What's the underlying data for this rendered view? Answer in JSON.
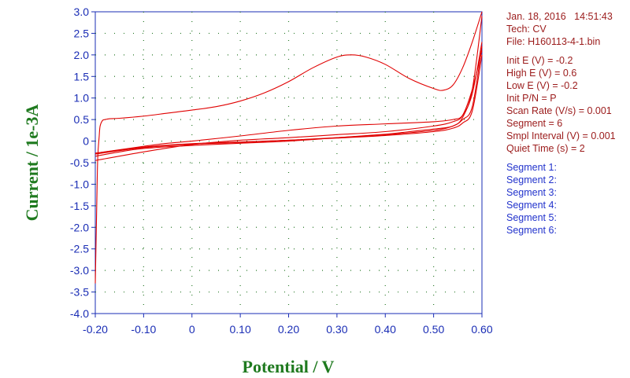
{
  "info_header": {
    "date_line": "Jan. 18, 2016   14:51:43",
    "tech": "Tech: CV",
    "file": "File: H160113-4-1.bin"
  },
  "params": [
    "Init E (V) = -0.2",
    "High E (V) = 0.6",
    "Low E (V) = -0.2",
    "Init P/N = P",
    "Scan Rate (V/s) = 0.001",
    "Segment = 6",
    "Smpl Interval (V) = 0.001",
    "Quiet Time (s) = 2"
  ],
  "segments": [
    "Segment 1:",
    "Segment 2:",
    "Segment 3:",
    "Segment 4:",
    "Segment 5:",
    "Segment 6:"
  ],
  "colors": {
    "curve": "#e00000",
    "axis": "#1a2db5",
    "axis_title": "#1f7a1f",
    "grid": "#2a7a2a",
    "info_text": "#9b1b1b",
    "segment_text": "#2233cc"
  },
  "chart_data": {
    "type": "line",
    "xlabel": "Potential / V",
    "ylabel": "Current / 1e-3A",
    "xlim": [
      -0.2,
      0.6
    ],
    "ylim": [
      -4.0,
      3.0
    ],
    "x_ticks": [
      "-0.20",
      "-0.10",
      "0",
      "0.10",
      "0.20",
      "0.30",
      "0.40",
      "0.50",
      "0.60"
    ],
    "y_ticks": [
      "3.0",
      "2.5",
      "2.0",
      "1.5",
      "1.0",
      "0.5",
      "0",
      "-0.5",
      "-1.0",
      "-1.5",
      "-2.0",
      "-2.5",
      "-3.0",
      "-3.5",
      "-4.0"
    ],
    "grid": true,
    "series": [
      {
        "x": [
          -0.2,
          -0.197,
          -0.195,
          -0.192,
          -0.19,
          -0.185,
          -0.18,
          -0.17,
          -0.15,
          -0.1,
          -0.05,
          0.0,
          0.05,
          0.1,
          0.15,
          0.2,
          0.25,
          0.3,
          0.33,
          0.36,
          0.4,
          0.45,
          0.5,
          0.52,
          0.54,
          0.56,
          0.58,
          0.6
        ],
        "y": [
          -3.3,
          -1.5,
          -0.4,
          0.1,
          0.35,
          0.48,
          0.5,
          0.52,
          0.53,
          0.58,
          0.65,
          0.72,
          0.8,
          0.93,
          1.12,
          1.38,
          1.7,
          1.95,
          2.0,
          1.95,
          1.78,
          1.45,
          1.22,
          1.18,
          1.3,
          1.7,
          2.3,
          3.0
        ]
      },
      {
        "x": [
          0.6,
          0.58,
          0.56,
          0.54,
          0.5,
          0.45,
          0.4,
          0.3,
          0.2,
          0.1,
          0.0,
          -0.1,
          -0.15,
          -0.2
        ],
        "y": [
          2.9,
          1.2,
          0.55,
          0.35,
          0.28,
          0.22,
          0.16,
          0.08,
          0.0,
          -0.05,
          -0.1,
          -0.17,
          -0.25,
          -0.35
        ]
      },
      {
        "x": [
          -0.2,
          -0.15,
          -0.1,
          -0.05,
          0.0,
          0.1,
          0.2,
          0.3,
          0.4,
          0.5,
          0.54,
          0.56,
          0.58,
          0.6
        ],
        "y": [
          -0.28,
          -0.2,
          -0.12,
          -0.05,
          0.0,
          0.12,
          0.25,
          0.35,
          0.4,
          0.45,
          0.5,
          0.6,
          1.1,
          2.3
        ]
      },
      {
        "x": [
          0.6,
          0.58,
          0.56,
          0.54,
          0.5,
          0.4,
          0.3,
          0.2,
          0.1,
          0.0,
          -0.1,
          -0.2
        ],
        "y": [
          2.2,
          0.8,
          0.5,
          0.35,
          0.25,
          0.15,
          0.08,
          0.02,
          -0.03,
          -0.07,
          -0.15,
          -0.3
        ]
      },
      {
        "x": [
          -0.2,
          -0.1,
          0.0,
          0.1,
          0.2,
          0.3,
          0.4,
          0.5,
          0.54,
          0.56,
          0.58,
          0.6
        ],
        "y": [
          -0.45,
          -0.25,
          -0.08,
          0.02,
          0.08,
          0.15,
          0.22,
          0.35,
          0.45,
          0.6,
          1.2,
          2.1
        ]
      },
      {
        "x": [
          0.6,
          0.58,
          0.56,
          0.54,
          0.5,
          0.4,
          0.3,
          0.2,
          0.1,
          0.0,
          -0.1,
          -0.2
        ],
        "y": [
          2.0,
          0.7,
          0.42,
          0.3,
          0.22,
          0.13,
          0.07,
          0.02,
          -0.02,
          -0.06,
          -0.14,
          -0.28
        ]
      }
    ]
  }
}
